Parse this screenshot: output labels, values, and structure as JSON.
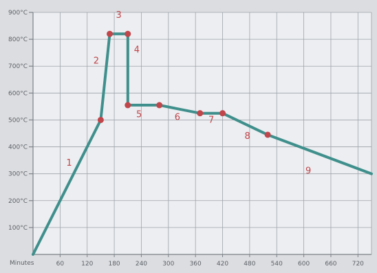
{
  "chart_data": {
    "type": "line",
    "title": "",
    "xlabel": "Minutes",
    "ylabel": "",
    "x_ticks": [
      60,
      120,
      180,
      240,
      300,
      360,
      420,
      480,
      540,
      600,
      660,
      720
    ],
    "y_ticks": [
      "100°C",
      "200°C",
      "300°C",
      "400°C",
      "500°C",
      "600°C",
      "700°C",
      "800°C",
      "900°C"
    ],
    "xlim": [
      0,
      750
    ],
    "ylim": [
      0,
      900
    ],
    "grid": true,
    "series": [
      {
        "x": [
          0,
          150,
          170,
          210,
          210,
          280,
          370,
          420,
          520,
          750
        ],
        "y": [
          0,
          500,
          820,
          820,
          555,
          555,
          525,
          525,
          445,
          300
        ]
      }
    ],
    "markers": [
      {
        "x": 150,
        "y": 500
      },
      {
        "x": 170,
        "y": 820
      },
      {
        "x": 210,
        "y": 820
      },
      {
        "x": 210,
        "y": 555
      },
      {
        "x": 280,
        "y": 555
      },
      {
        "x": 370,
        "y": 525
      },
      {
        "x": 420,
        "y": 525
      },
      {
        "x": 520,
        "y": 445
      }
    ],
    "segment_labels": [
      {
        "text": "1",
        "x": 80,
        "y": 330
      },
      {
        "text": "2",
        "x": 140,
        "y": 710
      },
      {
        "text": "3",
        "x": 190,
        "y": 880
      },
      {
        "text": "4",
        "x": 230,
        "y": 750
      },
      {
        "text": "5",
        "x": 235,
        "y": 510
      },
      {
        "text": "6",
        "x": 320,
        "y": 500
      },
      {
        "text": "7",
        "x": 395,
        "y": 490
      },
      {
        "text": "8",
        "x": 475,
        "y": 430
      },
      {
        "text": "9",
        "x": 610,
        "y": 300
      }
    ],
    "colors": {
      "line": "#3f8f8c",
      "marker": "#c0464b",
      "label": "#c0464b",
      "grid": "#9ea3aa",
      "plot_bg": "#eceef1"
    }
  }
}
